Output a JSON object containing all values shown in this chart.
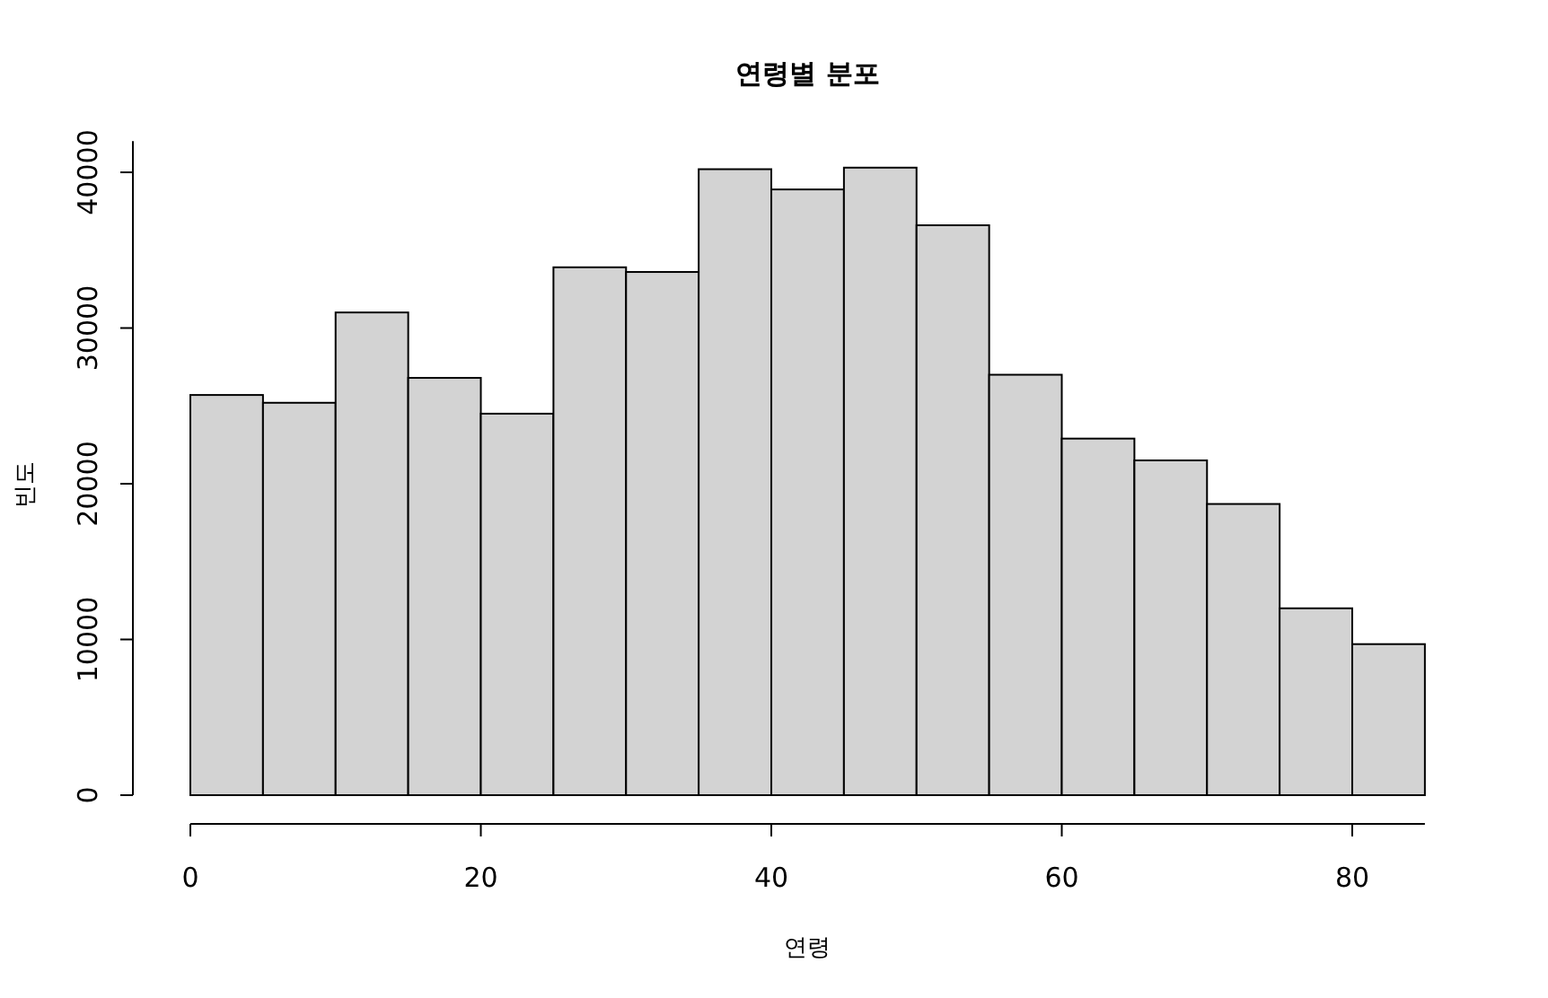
{
  "chart_data": {
    "type": "histogram",
    "title": "연령별 분포",
    "xlabel": "연령",
    "ylabel": "빈도",
    "color": "#d3d3d3",
    "bins": [
      0,
      5,
      10,
      15,
      20,
      25,
      30,
      35,
      40,
      45,
      50,
      55,
      60,
      65,
      70,
      75,
      80,
      85
    ],
    "values": [
      25700,
      25200,
      31000,
      26800,
      24500,
      33900,
      33600,
      40200,
      38900,
      40300,
      36600,
      27000,
      22900,
      21500,
      18700,
      12000,
      9700
    ],
    "xlim": [
      0,
      85
    ],
    "ylim": [
      0,
      42000
    ],
    "xticks": [
      0,
      20,
      40,
      60,
      80
    ],
    "yticks": [
      0,
      10000,
      20000,
      30000,
      40000
    ]
  }
}
